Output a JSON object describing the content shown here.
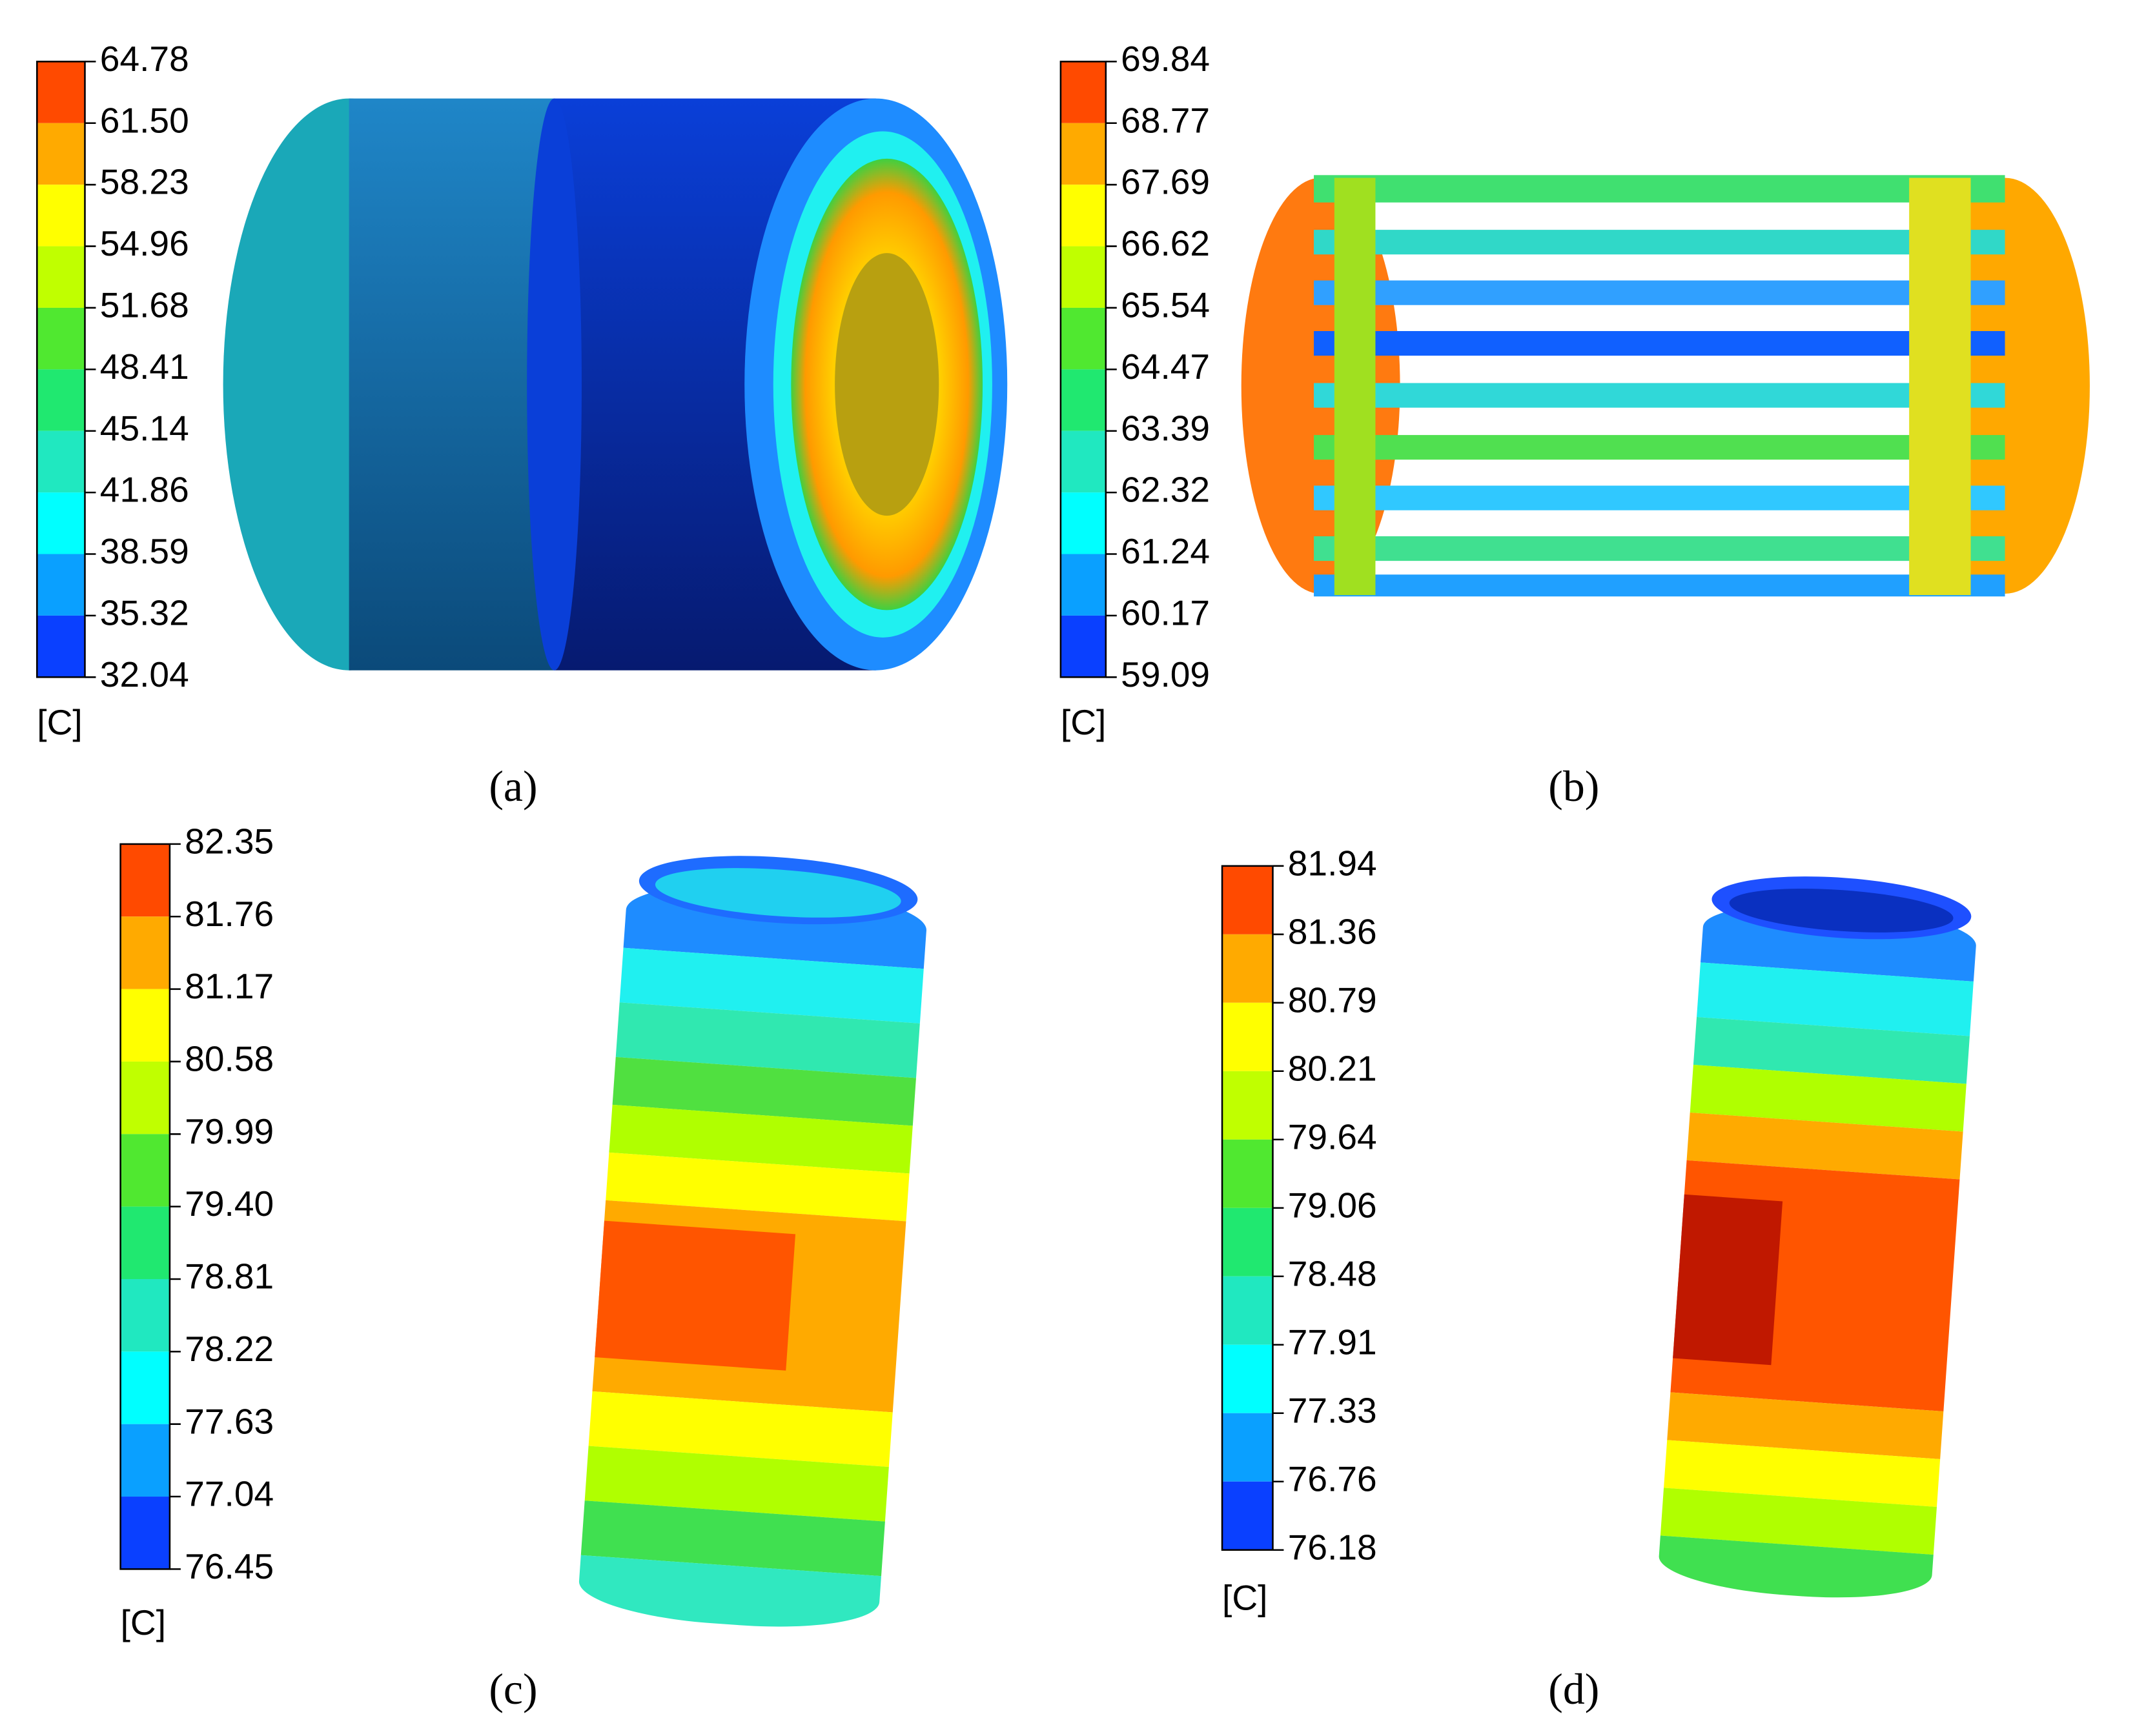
{
  "panels": [
    {
      "legend": {
        "labels": [
          "64.78",
          "61.50",
          "58.23",
          "54.96",
          "51.68",
          "48.41",
          "45.14",
          "41.86",
          "38.59",
          "35.32",
          "32.04"
        ],
        "unit": "[C]"
      },
      "caption": "(a)"
    },
    {
      "legend": {
        "labels": [
          "69.84",
          "68.77",
          "67.69",
          "66.62",
          "65.54",
          "64.47",
          "63.39",
          "62.32",
          "61.24",
          "60.17",
          "59.09"
        ],
        "unit": "[C]"
      },
      "caption": "(b)"
    },
    {
      "legend": {
        "labels": [
          "82.35",
          "81.76",
          "81.17",
          "80.58",
          "79.99",
          "79.40",
          "78.81",
          "78.22",
          "77.63",
          "77.04",
          "76.45"
        ],
        "unit": "[C]"
      },
      "caption": "(c)"
    },
    {
      "legend": {
        "labels": [
          "81.94",
          "81.36",
          "80.79",
          "80.21",
          "79.64",
          "79.06",
          "78.48",
          "77.91",
          "77.33",
          "76.76",
          "76.18"
        ],
        "unit": "[C]"
      },
      "caption": "(d)"
    }
  ]
}
